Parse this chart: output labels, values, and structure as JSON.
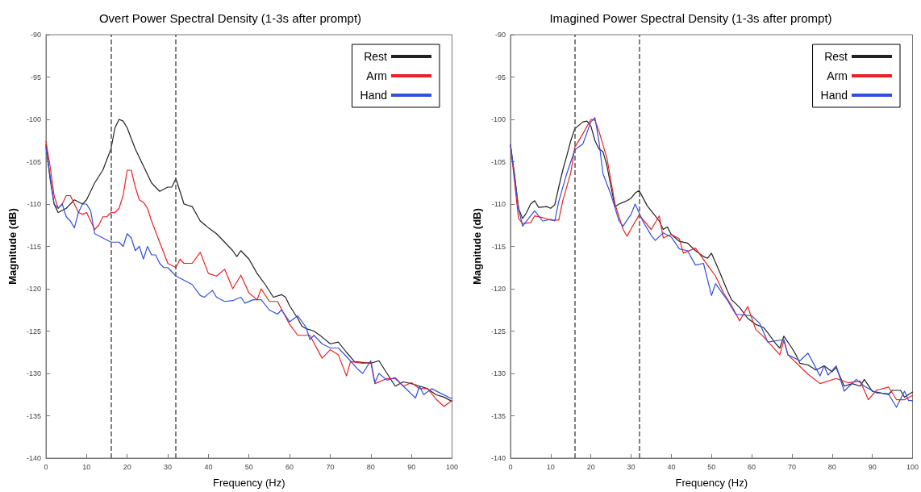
{
  "chart_data": [
    {
      "type": "line",
      "title": "Overt Power Spectral Density (1-3s after prompt)",
      "xlabel": "Frequency (Hz)",
      "ylabel": "Magnitude (dB)",
      "xlim": [
        0,
        100
      ],
      "xticks": [
        0,
        10,
        20,
        30,
        40,
        50,
        60,
        70,
        80,
        90,
        100
      ],
      "ylim": [
        -140,
        -90
      ],
      "yticks": [
        -140,
        -135,
        -130,
        -125,
        -120,
        -115,
        -110,
        -105,
        -100,
        -95,
        -90
      ],
      "grid": false,
      "legend": "top right",
      "marker": "none",
      "ref_lines": [
        {
          "axis": "x",
          "value": 16,
          "color": "#555555",
          "line_style": "dashed"
        },
        {
          "axis": "x",
          "value": 32,
          "color": "#555555",
          "line_style": "dashed"
        }
      ],
      "series": [
        {
          "name": "Rest",
          "color": "#222222",
          "x": [
            0,
            1,
            2,
            3,
            5,
            7,
            9,
            10,
            12,
            14,
            16,
            17,
            18,
            19,
            20,
            22,
            24,
            26,
            28,
            30,
            31,
            32,
            34,
            36,
            38,
            40,
            42,
            44,
            46,
            47,
            48,
            50,
            52,
            54,
            56,
            58,
            59,
            60,
            62,
            63,
            64,
            66,
            68,
            70,
            72,
            74,
            76,
            78,
            80,
            82,
            84,
            86,
            88,
            90,
            92,
            94,
            96,
            98,
            100
          ],
          "values": [
            -103,
            -107,
            -110,
            -111,
            -110.5,
            -109.5,
            -110,
            -109.5,
            -107.5,
            -106,
            -103.5,
            -101,
            -100,
            -100.2,
            -101,
            -103.5,
            -105.5,
            -107.5,
            -108.5,
            -108,
            -108,
            -107,
            -110,
            -110.3,
            -112,
            -112.8,
            -113.5,
            -114.5,
            -115.5,
            -116.2,
            -115.5,
            -116.5,
            -118.2,
            -119.5,
            -121,
            -120.7,
            -121,
            -122,
            -123.5,
            -124.4,
            -124.7,
            -125,
            -125.7,
            -126.5,
            -126.3,
            -127.5,
            -128.6,
            -128.7,
            -128.8,
            -128.5,
            -130,
            -131.5,
            -131,
            -131.2,
            -131.5,
            -131.8,
            -132.5,
            -132.8,
            -133.3
          ]
        },
        {
          "name": "Arm",
          "color": "#ee2020",
          "x": [
            0,
            1,
            2,
            3,
            4,
            5,
            6,
            7,
            8,
            9,
            10,
            11,
            12,
            13,
            14,
            15,
            16,
            17,
            18,
            19,
            20,
            21,
            22,
            23,
            24,
            25,
            26,
            28,
            30,
            32,
            33,
            34,
            36,
            38,
            40,
            42,
            44,
            46,
            48,
            50,
            52,
            53,
            55,
            57,
            60,
            62,
            65,
            68,
            70,
            72,
            74,
            75,
            78,
            80,
            81,
            84,
            86,
            88,
            90,
            92,
            94,
            96,
            98,
            100
          ],
          "values": [
            -102.6,
            -105.5,
            -109,
            -110.5,
            -110,
            -109,
            -109,
            -110,
            -111,
            -111.2,
            -111,
            -112,
            -113,
            -112.5,
            -111.5,
            -111.5,
            -111,
            -111,
            -110.5,
            -109,
            -106,
            -106,
            -108,
            -109.5,
            -109.8,
            -110.5,
            -112,
            -114.5,
            -117,
            -117.5,
            -116.5,
            -117,
            -117,
            -115.7,
            -118.2,
            -118.5,
            -117.7,
            -120,
            -118.4,
            -120.5,
            -121.3,
            -120,
            -121.5,
            -121.5,
            -124.2,
            -125.5,
            -125.5,
            -128.2,
            -127.2,
            -127.8,
            -130.3,
            -128.6,
            -128.8,
            -128.7,
            -131.2,
            -130.6,
            -130.6,
            -131.5,
            -131.1,
            -131.8,
            -131.8,
            -133,
            -133.9,
            -133.2
          ]
        },
        {
          "name": "Hand",
          "color": "#3050e0",
          "x": [
            0,
            1,
            2,
            3,
            4,
            5,
            6,
            7,
            8,
            9,
            10,
            11,
            12,
            14,
            16,
            18,
            19,
            20,
            21,
            22,
            23,
            24,
            25,
            26,
            27,
            28,
            29,
            30,
            31,
            32,
            34,
            36,
            38,
            39,
            41,
            42,
            44,
            46,
            48,
            49,
            51,
            53,
            55,
            57,
            58,
            60,
            62,
            64,
            65,
            66,
            68,
            70,
            72,
            74,
            77,
            78,
            80,
            81,
            82,
            84,
            86,
            88,
            91,
            92,
            93,
            95,
            97,
            100
          ],
          "values": [
            -103.3,
            -106.6,
            -110,
            -110.5,
            -110,
            -111.5,
            -112,
            -112.8,
            -111,
            -110,
            -110,
            -110.8,
            -113.5,
            -114,
            -114.5,
            -114.5,
            -115,
            -113.5,
            -114,
            -115.5,
            -115,
            -116.5,
            -115,
            -116,
            -116,
            -117,
            -117.5,
            -117.5,
            -118,
            -118.5,
            -119,
            -119.5,
            -120.8,
            -121,
            -120.2,
            -121,
            -121.5,
            -121.4,
            -121,
            -121.7,
            -121.3,
            -121.3,
            -122.5,
            -123,
            -122.5,
            -123.9,
            -123.2,
            -124.5,
            -126,
            -125.5,
            -126.5,
            -127,
            -127,
            -128,
            -129.6,
            -130,
            -128.5,
            -131.1,
            -130,
            -130.8,
            -130.5,
            -131.5,
            -132.9,
            -131.5,
            -132.5,
            -131.8,
            -132.3,
            -133
          ]
        }
      ]
    },
    {
      "type": "line",
      "title": "Imagined Power Spectral Density (1-3s after prompt)",
      "xlabel": "Frequency (Hz)",
      "ylabel": "Magnitude (dB)",
      "xlim": [
        0,
        100
      ],
      "xticks": [
        0,
        10,
        20,
        30,
        40,
        50,
        60,
        70,
        80,
        90,
        100
      ],
      "ylim": [
        -140,
        -90
      ],
      "yticks": [
        -140,
        -135,
        -130,
        -125,
        -120,
        -115,
        -110,
        -105,
        -100,
        -95,
        -90
      ],
      "grid": false,
      "legend": "top right",
      "marker": "none",
      "ref_lines": [
        {
          "axis": "x",
          "value": 16,
          "color": "#555555",
          "line_style": "dashed"
        },
        {
          "axis": "x",
          "value": 32,
          "color": "#555555",
          "line_style": "dashed"
        }
      ],
      "series": [
        {
          "name": "Rest",
          "color": "#222222",
          "x": [
            0,
            1,
            2,
            3,
            4,
            5,
            6,
            7,
            9,
            10,
            11,
            12,
            13,
            14,
            15,
            16,
            17,
            18,
            19,
            20,
            21,
            22,
            23,
            24,
            25,
            26,
            27,
            28,
            29,
            30,
            31,
            32,
            33,
            34,
            35,
            36,
            37,
            38,
            39,
            40,
            42,
            44,
            46,
            48,
            49,
            50,
            52,
            54,
            55,
            57,
            59,
            61,
            63,
            64,
            66,
            67,
            68,
            70,
            71,
            72,
            74,
            76,
            78,
            80,
            81,
            83,
            85,
            87,
            88,
            90,
            92,
            94,
            95,
            97,
            98,
            100
          ],
          "values": [
            -103,
            -106.5,
            -110.5,
            -111.7,
            -111,
            -110,
            -109.6,
            -110.4,
            -110.3,
            -110.5,
            -110.1,
            -108,
            -106,
            -104.3,
            -102.5,
            -101.1,
            -100.7,
            -100.3,
            -100.2,
            -100.8,
            -102.5,
            -103.5,
            -103.8,
            -105.5,
            -108,
            -110.3,
            -110,
            -109.8,
            -109.6,
            -109.3,
            -108.7,
            -108.4,
            -109.3,
            -110.2,
            -110.8,
            -111.4,
            -112,
            -113,
            -112.7,
            -113.6,
            -114.4,
            -114.6,
            -115.5,
            -116.2,
            -116.4,
            -115.8,
            -118,
            -120.3,
            -121.3,
            -122.2,
            -123.5,
            -124.2,
            -124.6,
            -125.2,
            -126.5,
            -127,
            -125.6,
            -127,
            -127.8,
            -128.8,
            -129,
            -129.6,
            -129.1,
            -129.8,
            -129.3,
            -131.5,
            -131.2,
            -131.5,
            -130.7,
            -132.1,
            -132.3,
            -132.5,
            -132,
            -132,
            -132.8,
            -132.2
          ]
        },
        {
          "name": "Arm",
          "color": "#ee2020",
          "x": [
            0,
            2,
            3,
            5,
            6,
            8,
            10,
            12,
            13,
            15,
            16,
            18,
            20,
            21,
            22,
            24,
            26,
            28,
            29,
            30,
            32,
            35,
            37,
            38,
            40,
            42,
            43,
            46,
            49,
            51,
            53,
            55,
            57,
            59,
            61,
            63,
            67,
            68,
            69,
            74,
            77,
            81,
            84,
            87,
            89,
            91,
            94,
            96,
            98,
            100
          ],
          "values": [
            -103,
            -111.7,
            -112.3,
            -112.2,
            -111.4,
            -111.6,
            -111.9,
            -111.9,
            -109.6,
            -106.3,
            -103.3,
            -101.7,
            -100,
            -100.1,
            -101.4,
            -104.6,
            -110,
            -113,
            -113.8,
            -112.9,
            -111.3,
            -113,
            -111.4,
            -114,
            -113.6,
            -114.1,
            -115.8,
            -115.2,
            -117.2,
            -118.5,
            -120.5,
            -122,
            -123.8,
            -122.1,
            -124.8,
            -125.7,
            -127.8,
            -126.1,
            -127.8,
            -130.1,
            -131.2,
            -130.6,
            -131.1,
            -130.9,
            -133.1,
            -132,
            -131.6,
            -133.1,
            -133.1,
            -132.6
          ]
        },
        {
          "name": "Hand",
          "color": "#3050e0",
          "x": [
            0,
            2,
            3,
            6,
            8,
            10,
            11,
            12,
            14,
            16,
            18,
            20,
            21,
            22,
            23,
            25,
            27,
            28,
            30,
            31,
            33,
            35,
            36,
            38,
            40,
            42,
            44,
            46,
            48,
            50,
            51,
            54,
            56,
            60,
            62,
            64,
            68,
            69,
            72,
            74,
            77,
            78,
            79,
            81,
            83,
            86,
            88,
            91,
            94,
            96,
            98,
            99,
            100
          ],
          "values": [
            -103,
            -110.5,
            -112.6,
            -110.8,
            -112,
            -111.8,
            -112,
            -109.7,
            -106.4,
            -103.6,
            -102.9,
            -100.3,
            -99.8,
            -102.6,
            -106.4,
            -108.9,
            -112,
            -112.6,
            -111.2,
            -110,
            -112.1,
            -113.7,
            -114.3,
            -113.4,
            -113.9,
            -115.3,
            -115.5,
            -117.2,
            -117,
            -120.8,
            -119.4,
            -121.4,
            -123,
            -123.2,
            -124.1,
            -126.3,
            -126,
            -127.8,
            -128.5,
            -127.6,
            -130.3,
            -129.1,
            -130.2,
            -129.1,
            -132.1,
            -130.7,
            -131.5,
            -132.3,
            -132.4,
            -134,
            -132.1,
            -133.2,
            -133.2
          ]
        }
      ]
    }
  ]
}
